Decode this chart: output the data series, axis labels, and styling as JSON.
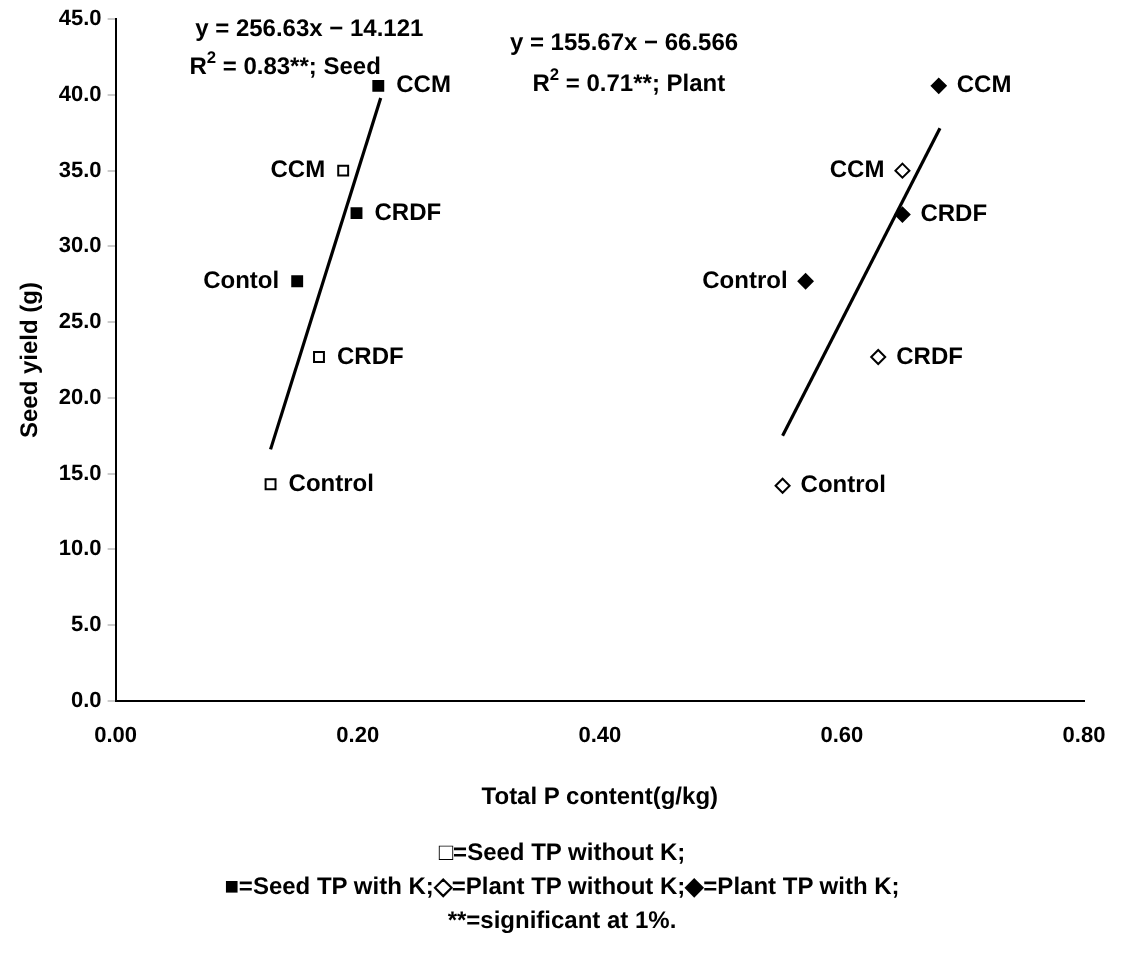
{
  "chart_data": {
    "type": "scatter",
    "xlabel": "Total P content(g/kg)",
    "ylabel": "Seed yield (g)",
    "xlim": [
      0,
      0.8
    ],
    "ylim": [
      0,
      45
    ],
    "xticks": [
      {
        "value": 0,
        "label": "0.00"
      },
      {
        "value": 0.2,
        "label": "0.20"
      },
      {
        "value": 0.4,
        "label": "0.40"
      },
      {
        "value": 0.6,
        "label": "0.60"
      },
      {
        "value": 0.8,
        "label": "0.80"
      }
    ],
    "yticks": [
      {
        "value": 0,
        "label": "0.0"
      },
      {
        "value": 5,
        "label": "5.0"
      },
      {
        "value": 10,
        "label": "10.0"
      },
      {
        "value": 15,
        "label": "15.0"
      },
      {
        "value": 20,
        "label": "20.0"
      },
      {
        "value": 25,
        "label": "25.0"
      },
      {
        "value": 30,
        "label": "30.0"
      },
      {
        "value": 35,
        "label": "35.0"
      },
      {
        "value": 40,
        "label": "40.0"
      },
      {
        "value": 45,
        "label": "45.0"
      }
    ],
    "grid": false,
    "legend": false,
    "series": [
      {
        "marker": "square",
        "color": "#ffffff",
        "x": [
          0.188,
          0.168,
          0.128
        ],
        "values": [
          35.0,
          22.7,
          14.3
        ],
        "value_labels": [
          "CCM",
          "CRDF",
          "Control"
        ]
      },
      {
        "marker": "square",
        "color": "#000000",
        "x": [
          0.217,
          0.199,
          0.15
        ],
        "values": [
          40.6,
          32.2,
          27.7
        ],
        "value_labels": [
          "CCM",
          "CRDF",
          "Contol"
        ]
      },
      {
        "marker": "diamond",
        "color": "#ffffff",
        "x": [
          0.65,
          0.63,
          0.551
        ],
        "values": [
          35.0,
          22.7,
          14.2
        ],
        "value_labels": [
          "CCM",
          "CRDF",
          "Control"
        ]
      },
      {
        "marker": "diamond",
        "color": "#000000",
        "x": [
          0.68,
          0.65,
          0.57
        ],
        "values": [
          40.6,
          32.1,
          27.7
        ],
        "value_labels": [
          "CCM",
          "CRDF",
          "Control"
        ]
      },
      {
        "type": "line",
        "marker": "none",
        "color": "#000000",
        "x": [
          0.128,
          0.219
        ],
        "values": [
          16.6,
          39.8
        ]
      },
      {
        "type": "line",
        "marker": "none",
        "color": "#000000",
        "x": [
          0.551,
          0.681
        ],
        "values": [
          17.5,
          37.8
        ]
      }
    ],
    "annotations": [
      "y = 256.63x − 14.121",
      "R$^{2}$ = 0.83**; Seed",
      "y = 155.67x − 66.566",
      "R$^{2}$ = 0.71**; Plant",
      "□=Seed TP without K;",
      "■=Seed TP with K;◇=Plant TP without K;◆=Plant TP with K;",
      "**=significant at 1%."
    ]
  }
}
